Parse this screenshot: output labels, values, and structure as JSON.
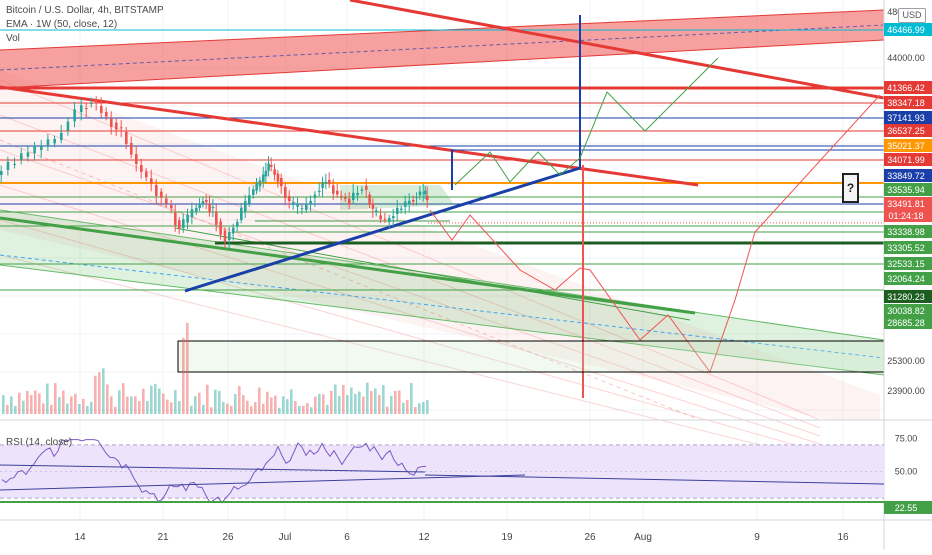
{
  "header": {
    "title": "Bitcoin / U.S. Dollar, 4h, BITSTAMP",
    "indicator": "EMA · 1W (50, close, 12)",
    "volume": "Vol",
    "currency": "USD"
  },
  "rsi_header": "RSI (14, close)",
  "annotation": "?",
  "colors": {
    "up": "#26a69a",
    "down": "#ef5350",
    "red_line": "#e53935",
    "blue_line": "#1a3fa8",
    "green_line": "#43a047",
    "orange_line": "#ff9800",
    "rsi_line": "#7e57c2",
    "rsi_band": "#ede4fb"
  },
  "chart_data": [
    {
      "type": "candlestick",
      "title": "Bitcoin / U.S. Dollar, 4h, BITSTAMP",
      "xlabel": "",
      "ylabel": "",
      "x_ticks": [
        "14",
        "21",
        "26",
        "Jul",
        "6",
        "12",
        "19",
        "26",
        "Aug",
        "9",
        "16"
      ],
      "y_ticks": [
        48000,
        46466.99,
        44000,
        41366.42,
        38347.18,
        37141.93,
        36537.25,
        35021.37,
        34071.99,
        33849.72,
        33535.94,
        33491.81,
        33338.98,
        33305.52,
        32533.15,
        32064.24,
        31280.23,
        30038.82,
        28685.28,
        25300,
        23900
      ],
      "price_labels": [
        {
          "text": "46466.99",
          "color": "#00bcd4"
        },
        {
          "text": "41366.42",
          "color": "#e53935"
        },
        {
          "text": "38347.18",
          "color": "#e53935"
        },
        {
          "text": "37141.93",
          "color": "#1a3fa8"
        },
        {
          "text": "36537.25",
          "color": "#e53935"
        },
        {
          "text": "35021.37",
          "color": "#ff9800"
        },
        {
          "text": "34071.99",
          "color": "#e53935"
        },
        {
          "text": "33849.72",
          "color": "#1a3fa8"
        },
        {
          "text": "33535.94",
          "color": "#43a047"
        },
        {
          "text": "33491.81",
          "color": "#ef5350"
        },
        {
          "text": "01:24:18",
          "color": "#ef5350"
        },
        {
          "text": "33338.98",
          "color": "#43a047"
        },
        {
          "text": "33305.52",
          "color": "#43a047"
        },
        {
          "text": "32533.15",
          "color": "#43a047"
        },
        {
          "text": "32064.24",
          "color": "#43a047"
        },
        {
          "text": "31280.23",
          "color": "#1b5e20"
        },
        {
          "text": "30038.82",
          "color": "#43a047"
        },
        {
          "text": "28685.28",
          "color": "#43a047"
        }
      ],
      "axis_plain_labels": [
        "48000.00",
        "44000.00",
        "25300.00",
        "23900.00"
      ],
      "last_price": 33491.81,
      "grid": true
    },
    {
      "type": "line",
      "title": "RSI (14, close)",
      "y_ticks": [
        75,
        50,
        22.55
      ],
      "y_labels": [
        "75.00",
        "50.00",
        "22.55"
      ],
      "ylim": [
        15,
        85
      ],
      "band": [
        30,
        70
      ],
      "grid": true
    }
  ]
}
